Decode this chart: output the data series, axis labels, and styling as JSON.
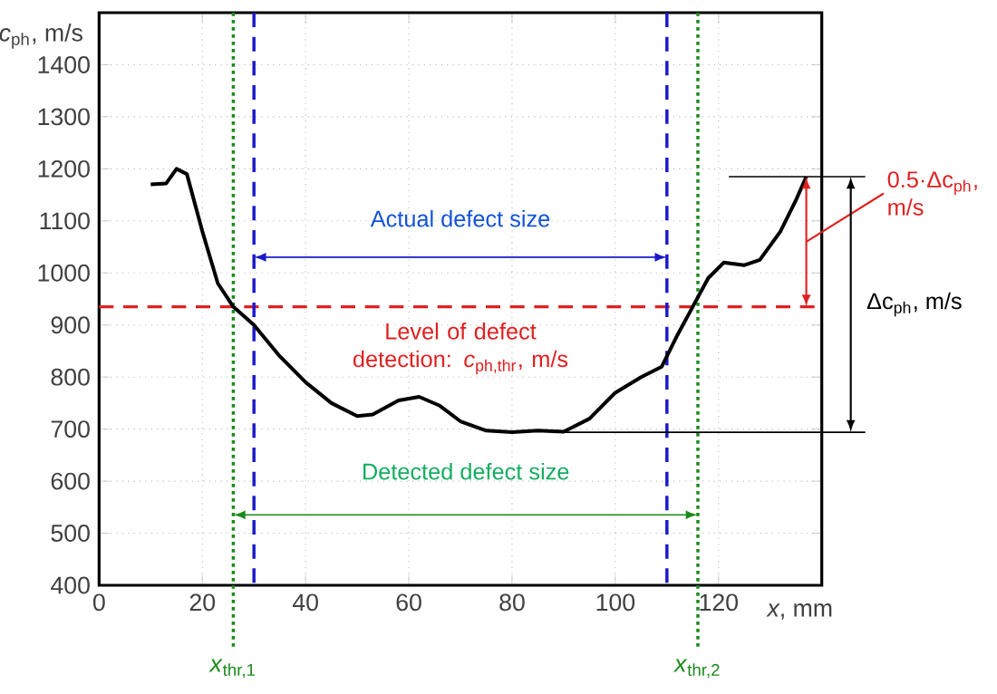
{
  "chart_data": {
    "type": "line",
    "xlabel": "*x*, mm",
    "ylabel": "*c*$_{ph}$, m/s",
    "xlim": [
      0,
      140
    ],
    "ylim": [
      400,
      1500
    ],
    "xticks": [
      0,
      20,
      40,
      60,
      80,
      100,
      120
    ],
    "yticks": [
      400,
      500,
      600,
      700,
      800,
      900,
      1000,
      1100,
      1200,
      1300,
      1400
    ],
    "grid": true,
    "series": [
      {
        "color": "#000000",
        "x": [
          10,
          13,
          15,
          17,
          20,
          23,
          26,
          30,
          35,
          40,
          45,
          50,
          53,
          58,
          62,
          66,
          70,
          75,
          80,
          85,
          90,
          95,
          100,
          105,
          109,
          112,
          115,
          118,
          121,
          125,
          128,
          132,
          135,
          137
        ],
        "values": [
          1170,
          1172,
          1200,
          1190,
          1080,
          980,
          935,
          900,
          840,
          790,
          750,
          725,
          728,
          755,
          762,
          745,
          715,
          697,
          694,
          697,
          695,
          720,
          770,
          800,
          820,
          880,
          935,
          990,
          1020,
          1015,
          1025,
          1080,
          1140,
          1185
        ]
      }
    ],
    "ref_lines": [
      {
        "axis": "y",
        "value": 935,
        "label": "Level of defect detection: *c*$_{ph,thr}$, m/s",
        "color": "#e02020",
        "line_style": "dashed"
      },
      {
        "axis": "y",
        "value": 1185,
        "color": "#000000",
        "line_style": "solid"
      },
      {
        "axis": "y",
        "value": 694,
        "color": "#000000",
        "line_style": "solid"
      },
      {
        "axis": "x",
        "value": 30,
        "color": "#1a1acc",
        "line_style": "dashed"
      },
      {
        "axis": "x",
        "value": 110,
        "color": "#1a1acc",
        "line_style": "dashed"
      },
      {
        "axis": "x",
        "value": 26,
        "label": "*x*$_{thr,1}$",
        "color": "#1a8a1a",
        "line_style": "dotted"
      },
      {
        "axis": "x",
        "value": 116,
        "label": "*x*$_{thr,2}$",
        "color": "#1a8a1a",
        "line_style": "dotted"
      }
    ],
    "annotations": [
      "Actual defect size",
      "Detected defect size",
      "0.5·Δc$_{ph}$, m/s",
      "Δc$_{ph}$, m/s"
    ]
  }
}
